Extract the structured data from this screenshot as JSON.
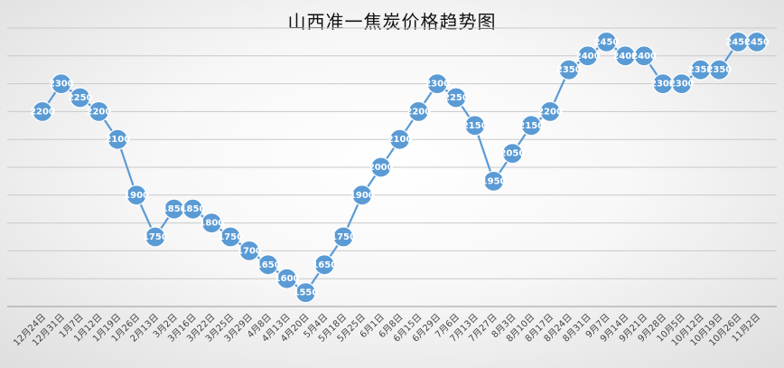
{
  "chart_data": {
    "type": "line",
    "title": "山西准一焦炭价格趋势图",
    "xlabel": "",
    "ylabel": "",
    "ylim": [
      1500,
      2500
    ],
    "grid": true,
    "legend": "none",
    "categories": [
      "12月24日",
      "12月31日",
      "1月7日",
      "1月12日",
      "1月19日",
      "1月26日",
      "2月13日",
      "3月2日",
      "3月16日",
      "3月22日",
      "3月25日",
      "3月29日",
      "4月8日",
      "4月13日",
      "4月20日",
      "5月4日",
      "5月18日",
      "5月25日",
      "6月1日",
      "6月8日",
      "6月15日",
      "6月29日",
      "7月6日",
      "7月13日",
      "7月27日",
      "8月3日",
      "8月10日",
      "8月17日",
      "8月24日",
      "8月31日",
      "9月7日",
      "9月14日",
      "9月21日",
      "9月28日",
      "10月5日",
      "10月12日",
      "10月19日",
      "10月26日",
      "11月2日"
    ],
    "series": [
      {
        "values": [
          2200,
          2300,
          2250,
          2200,
          2100,
          1900,
          1750,
          1850,
          1850,
          1800,
          1750,
          1700,
          1650,
          1600,
          1550,
          1650,
          1750,
          1900,
          2000,
          2100,
          2200,
          2300,
          2250,
          2150,
          1950,
          2050,
          2150,
          2200,
          2350,
          2400,
          2450,
          2400,
          2400,
          2300,
          2300,
          2350,
          2350,
          2450,
          2450
        ],
        "color": "#5b9bd5"
      }
    ]
  }
}
